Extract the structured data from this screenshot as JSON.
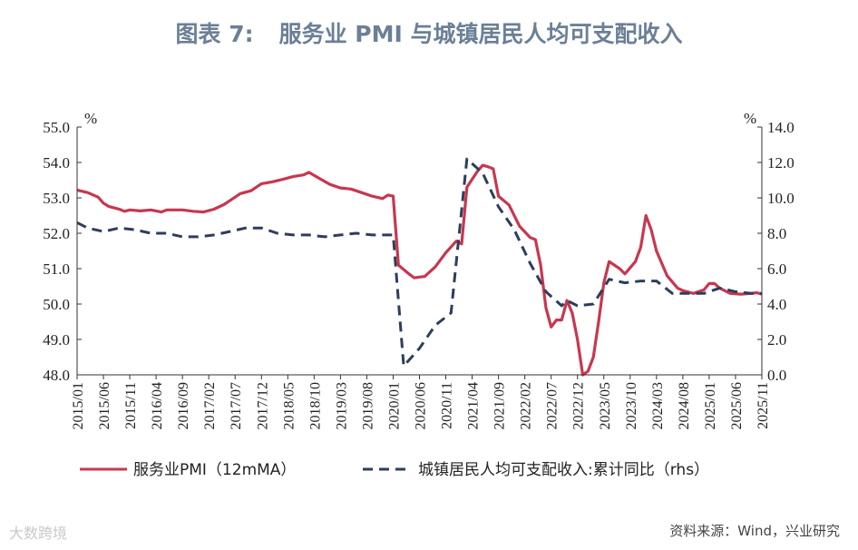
{
  "header": {
    "prefix": "图表 7:",
    "title": "服务业 PMI 与城镇居民人均可支配收入"
  },
  "source": "资料来源：Wind，兴业研究",
  "watermark": "大数跨境",
  "chart_data": {
    "type": "line",
    "title": "图表 7:    服务业 PMI 与城镇居民人均可支配收入",
    "y_left": {
      "unit": "%",
      "min": 48.0,
      "max": 55.0,
      "step": 1.0,
      "decimals": 1
    },
    "y_right": {
      "unit": "%",
      "min": 0.0,
      "max": 14.0,
      "step": 2.0,
      "decimals": 1
    },
    "x_tick_labels": [
      "2015/01",
      "2015/06",
      "2015/11",
      "2016/04",
      "2016/09",
      "2017/02",
      "2017/07",
      "2017/12",
      "2018/05",
      "2018/10",
      "2019/03",
      "2019/08",
      "2020/01",
      "2020/06",
      "2020/11",
      "2021/04",
      "2021/09",
      "2022/02",
      "2022/07",
      "2022/12",
      "2023/05",
      "2023/10",
      "2024/03",
      "2024/08",
      "2025/01",
      "2025/06",
      "2025/11"
    ],
    "legend": {
      "position": "bottom"
    },
    "series": [
      {
        "name": "服务业PMI（12mMA）",
        "axis": "left",
        "color": "#c8374f",
        "style": "solid",
        "points": [
          [
            "2015/01",
            53.22
          ],
          [
            "2015/03",
            53.15
          ],
          [
            "2015/05",
            53.02
          ],
          [
            "2015/06",
            52.85
          ],
          [
            "2015/07",
            52.76
          ],
          [
            "2015/09",
            52.68
          ],
          [
            "2015/10",
            52.62
          ],
          [
            "2015/11",
            52.66
          ],
          [
            "2016/01",
            52.63
          ],
          [
            "2016/03",
            52.66
          ],
          [
            "2016/05",
            52.6
          ],
          [
            "2016/06",
            52.66
          ],
          [
            "2016/09",
            52.66
          ],
          [
            "2016/11",
            52.62
          ],
          [
            "2017/01",
            52.6
          ],
          [
            "2017/03",
            52.68
          ],
          [
            "2017/05",
            52.82
          ],
          [
            "2017/06",
            52.92
          ],
          [
            "2017/08",
            53.12
          ],
          [
            "2017/10",
            53.2
          ],
          [
            "2017/12",
            53.4
          ],
          [
            "2018/02",
            53.45
          ],
          [
            "2018/04",
            53.52
          ],
          [
            "2018/06",
            53.6
          ],
          [
            "2018/08",
            53.65
          ],
          [
            "2018/09",
            53.72
          ],
          [
            "2018/11",
            53.55
          ],
          [
            "2019/01",
            53.38
          ],
          [
            "2019/03",
            53.28
          ],
          [
            "2019/05",
            53.25
          ],
          [
            "2019/07",
            53.15
          ],
          [
            "2019/09",
            53.05
          ],
          [
            "2019/11",
            52.98
          ],
          [
            "2019/12",
            53.08
          ],
          [
            "2020/01",
            53.05
          ],
          [
            "2020/02",
            51.1
          ],
          [
            "2020/04",
            50.85
          ],
          [
            "2020/05",
            50.74
          ],
          [
            "2020/07",
            50.78
          ],
          [
            "2020/09",
            51.05
          ],
          [
            "2020/11",
            51.45
          ],
          [
            "2021/01",
            51.78
          ],
          [
            "2021/02",
            51.7
          ],
          [
            "2021/03",
            53.3
          ],
          [
            "2021/05",
            53.75
          ],
          [
            "2021/06",
            53.92
          ],
          [
            "2021/07",
            53.88
          ],
          [
            "2021/08",
            53.82
          ],
          [
            "2021/09",
            53.05
          ],
          [
            "2021/11",
            52.8
          ],
          [
            "2022/01",
            52.2
          ],
          [
            "2022/03",
            51.88
          ],
          [
            "2022/04",
            51.82
          ],
          [
            "2022/05",
            51.1
          ],
          [
            "2022/06",
            49.9
          ],
          [
            "2022/07",
            49.35
          ],
          [
            "2022/08",
            49.55
          ],
          [
            "2022/09",
            49.55
          ],
          [
            "2022/10",
            50.1
          ],
          [
            "2022/11",
            49.75
          ],
          [
            "2022/12",
            49.0
          ],
          [
            "2023/01",
            48.0
          ],
          [
            "2023/02",
            48.1
          ],
          [
            "2023/03",
            48.5
          ],
          [
            "2023/04",
            49.5
          ],
          [
            "2023/05",
            50.6
          ],
          [
            "2023/06",
            51.2
          ],
          [
            "2023/08",
            51.0
          ],
          [
            "2023/09",
            50.85
          ],
          [
            "2023/11",
            51.2
          ],
          [
            "2023/12",
            51.6
          ],
          [
            "2024/01",
            52.5
          ],
          [
            "2024/02",
            52.1
          ],
          [
            "2024/03",
            51.5
          ],
          [
            "2024/05",
            50.8
          ],
          [
            "2024/07",
            50.45
          ],
          [
            "2024/08",
            50.38
          ],
          [
            "2024/10",
            50.3
          ],
          [
            "2024/11",
            50.35
          ],
          [
            "2024/12",
            50.4
          ],
          [
            "2025/01",
            50.58
          ],
          [
            "2025/02",
            50.58
          ],
          [
            "2025/03",
            50.45
          ],
          [
            "2025/05",
            50.3
          ],
          [
            "2025/07",
            50.28
          ],
          [
            "2025/09",
            50.3
          ],
          [
            "2025/10",
            50.32
          ],
          [
            "2025/11",
            50.28
          ]
        ]
      },
      {
        "name": "城镇居民人均可支配收入:累计同比（rhs）",
        "axis": "right",
        "color": "#2c3e5c",
        "style": "dashed",
        "points": [
          [
            "2015/01",
            8.6
          ],
          [
            "2015/03",
            8.3
          ],
          [
            "2015/06",
            8.1
          ],
          [
            "2015/09",
            8.3
          ],
          [
            "2015/12",
            8.2
          ],
          [
            "2016/03",
            8.0
          ],
          [
            "2016/06",
            8.0
          ],
          [
            "2016/09",
            7.8
          ],
          [
            "2016/12",
            7.8
          ],
          [
            "2017/03",
            7.9
          ],
          [
            "2017/06",
            8.1
          ],
          [
            "2017/09",
            8.3
          ],
          [
            "2017/12",
            8.3
          ],
          [
            "2018/03",
            8.0
          ],
          [
            "2018/06",
            7.9
          ],
          [
            "2018/09",
            7.9
          ],
          [
            "2018/12",
            7.8
          ],
          [
            "2019/03",
            7.9
          ],
          [
            "2019/06",
            8.0
          ],
          [
            "2019/09",
            7.9
          ],
          [
            "2019/12",
            7.9
          ],
          [
            "2020/01",
            7.9
          ],
          [
            "2020/03",
            0.5
          ],
          [
            "2020/06",
            1.5
          ],
          [
            "2020/09",
            2.8
          ],
          [
            "2020/12",
            3.5
          ],
          [
            "2021/03",
            12.2
          ],
          [
            "2021/06",
            11.4
          ],
          [
            "2021/09",
            9.5
          ],
          [
            "2021/12",
            8.2
          ],
          [
            "2022/03",
            6.3
          ],
          [
            "2022/06",
            4.7
          ],
          [
            "2022/09",
            3.9
          ],
          [
            "2022/10",
            4.2
          ],
          [
            "2022/12",
            3.9
          ],
          [
            "2023/03",
            4.0
          ],
          [
            "2023/06",
            5.4
          ],
          [
            "2023/09",
            5.2
          ],
          [
            "2023/12",
            5.3
          ],
          [
            "2024/03",
            5.3
          ],
          [
            "2024/06",
            4.6
          ],
          [
            "2024/09",
            4.6
          ],
          [
            "2024/12",
            4.6
          ],
          [
            "2025/03",
            4.9
          ],
          [
            "2025/06",
            4.7
          ],
          [
            "2025/09",
            4.6
          ],
          [
            "2025/11",
            4.6
          ]
        ]
      }
    ]
  }
}
